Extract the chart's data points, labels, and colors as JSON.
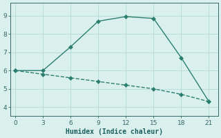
{
  "line1_x": [
    0,
    3,
    6,
    9,
    12,
    15,
    18,
    21
  ],
  "line1_y": [
    6.0,
    6.0,
    7.3,
    8.7,
    8.95,
    8.85,
    6.7,
    4.3
  ],
  "line2_x": [
    0,
    3,
    6,
    9,
    12,
    15,
    18,
    21
  ],
  "line2_y": [
    6.0,
    5.8,
    5.6,
    5.4,
    5.2,
    5.0,
    4.7,
    4.3
  ],
  "line_color": "#2a7f6f",
  "bg_color": "#daf0ec",
  "grid_color": "#b8ddd8",
  "xlabel": "Humidex (Indice chaleur)",
  "xlim": [
    -0.5,
    22
  ],
  "ylim": [
    3.5,
    9.7
  ],
  "xticks": [
    0,
    3,
    6,
    9,
    12,
    15,
    18,
    21
  ],
  "yticks": [
    4,
    5,
    6,
    7,
    8,
    9
  ],
  "markersize": 3.0,
  "linewidth": 1.0
}
